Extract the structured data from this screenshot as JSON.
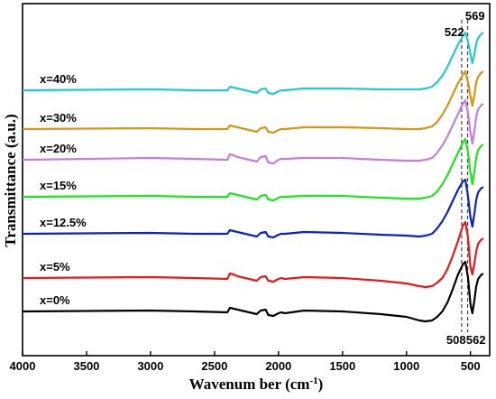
{
  "chart_data": {
    "type": "line",
    "title": "",
    "xlabel": "Wavenum ber (cm",
    "xlabel_sup": "-1",
    "xlabel_close": ")",
    "ylabel": "Transmittance (a.u.)",
    "xlim": [
      4000,
      350
    ],
    "x_reversed": true,
    "x_ticks": [
      4000,
      3500,
      3000,
      2500,
      2000,
      1500,
      1000,
      500
    ],
    "y_ticks_shown": false,
    "grid": false,
    "legend": "none",
    "annotations": {
      "dashed_lines": [
        522,
        569
      ],
      "labels": [
        {
          "text": "522",
          "x": 522,
          "position": "top-left"
        },
        {
          "text": "569",
          "x": 569,
          "position": "top-right"
        },
        {
          "text": "508",
          "x": 508,
          "position": "bottom-left"
        },
        {
          "text": "562",
          "x": 562,
          "position": "bottom-right"
        }
      ]
    },
    "profile_x": [
      4000,
      3000,
      2650,
      2400,
      2380,
      2350,
      2320,
      2200,
      2170,
      2140,
      2100,
      2080,
      2040,
      2000,
      1980,
      1950,
      1800,
      1500,
      1200,
      1000,
      900,
      850,
      800,
      760,
      720,
      680,
      640,
      600,
      560,
      540,
      520,
      500,
      485,
      470,
      455,
      440,
      420,
      400
    ],
    "series": [
      {
        "name": "x=0%",
        "color": "#000000",
        "offset": 0,
        "profile": [
          0,
          1,
          0,
          -1,
          4,
          3,
          2,
          -2,
          -3,
          1,
          2,
          -4,
          -5,
          -2,
          -1,
          -2,
          1,
          0,
          -3,
          -6,
          -10,
          -11,
          -10,
          -6,
          0,
          10,
          24,
          40,
          52,
          55,
          38,
          8,
          -2,
          12,
          28,
          36,
          40,
          42
        ]
      },
      {
        "name": "x=5%",
        "color": "#e8191b",
        "offset": 37,
        "profile": [
          0,
          1,
          0,
          -1,
          5,
          4,
          2,
          -2,
          -3,
          1,
          2,
          -3,
          -4,
          -1,
          0,
          -1,
          1,
          0,
          -3,
          -6,
          -9,
          -10,
          -9,
          -5,
          0,
          10,
          24,
          40,
          58,
          62,
          45,
          12,
          4,
          16,
          30,
          38,
          42,
          44
        ]
      },
      {
        "name": "x=12.5%",
        "color": "#0b1fd6",
        "offset": 86,
        "profile": [
          0,
          1,
          0,
          0,
          4,
          3,
          2,
          -2,
          -3,
          1,
          2,
          -3,
          -4,
          -1,
          0,
          0,
          2,
          1,
          -1,
          -2,
          -3,
          -2,
          0,
          6,
          14,
          24,
          36,
          48,
          58,
          60,
          42,
          18,
          8,
          22,
          38,
          46,
          50,
          52
        ]
      },
      {
        "name": "x=15%",
        "color": "#1ee61e",
        "offset": 127,
        "profile": [
          0,
          1,
          0,
          0,
          4,
          3,
          2,
          -2,
          -3,
          1,
          2,
          -3,
          -4,
          -1,
          0,
          0,
          1,
          1,
          -1,
          -2,
          -2,
          -1,
          1,
          6,
          14,
          24,
          36,
          48,
          60,
          64,
          50,
          26,
          14,
          28,
          44,
          52,
          56,
          58
        ]
      },
      {
        "name": "x=20%",
        "color": "#c77cdf",
        "offset": 168,
        "profile": [
          0,
          2,
          1,
          0,
          6,
          5,
          3,
          -1,
          -2,
          3,
          4,
          -3,
          -4,
          0,
          1,
          1,
          2,
          2,
          0,
          -1,
          -1,
          0,
          2,
          8,
          16,
          26,
          38,
          50,
          62,
          66,
          52,
          30,
          18,
          32,
          48,
          56,
          60,
          62
        ]
      },
      {
        "name": "x=30%",
        "color": "#d9950f",
        "offset": 202,
        "profile": [
          0,
          1,
          0,
          0,
          4,
          3,
          2,
          -2,
          -3,
          1,
          2,
          -3,
          -4,
          -1,
          0,
          0,
          2,
          2,
          1,
          0,
          0,
          1,
          3,
          8,
          16,
          26,
          38,
          50,
          60,
          64,
          52,
          36,
          26,
          38,
          52,
          58,
          62,
          64
        ]
      },
      {
        "name": "x=40%",
        "color": "#25c9d2",
        "offset": 245,
        "profile": [
          0,
          1,
          0,
          0,
          4,
          3,
          2,
          -2,
          -3,
          1,
          2,
          -3,
          -4,
          -1,
          0,
          0,
          2,
          2,
          1,
          1,
          1,
          2,
          4,
          9,
          16,
          26,
          38,
          50,
          60,
          64,
          54,
          40,
          30,
          40,
          52,
          58,
          62,
          64
        ]
      }
    ]
  }
}
